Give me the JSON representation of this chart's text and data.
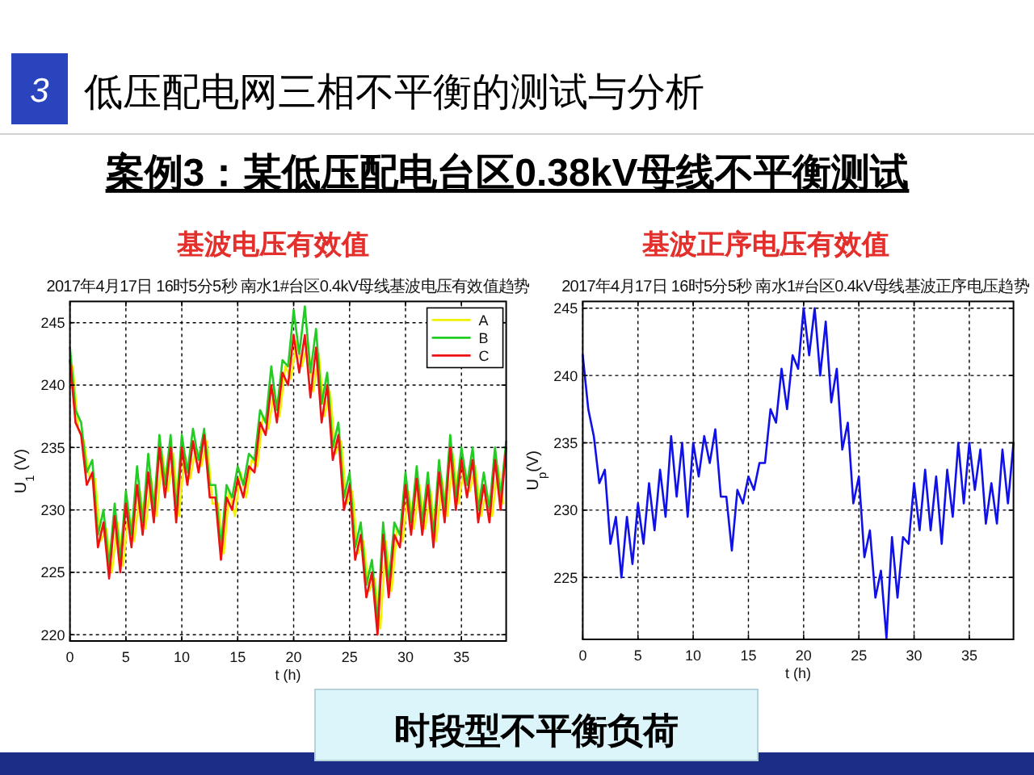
{
  "chart_data": [
    {
      "type": "other",
      "title": "低压配电网三相不平衡的测试与分析",
      "subtitle": "案例3：某低压配电台区0.38kV母线不平衡测试",
      "annotations": [
        "3",
        "时段型不平衡负荷"
      ]
    },
    {
      "type": "line",
      "title": "基波电压有效值",
      "subtitle": "2017年4月17日 16时5分5秒  南水1#台区0.4kV母线基波电压有效值趋势",
      "xlabel": "t (h)",
      "ylabel": "U$_{1}$ (V)",
      "x": [
        0,
        0.5,
        1,
        1.5,
        2,
        2.5,
        3,
        3.5,
        4,
        4.5,
        5,
        5.5,
        6,
        6.5,
        7,
        7.5,
        8,
        8.5,
        9,
        9.5,
        10,
        10.5,
        11,
        11.5,
        12,
        12.5,
        13,
        13.5,
        14,
        14.5,
        15,
        15.5,
        16,
        16.5,
        17,
        17.5,
        18,
        18.5,
        19,
        19.5,
        20,
        20.5,
        21,
        21.5,
        22,
        22.5,
        23,
        23.5,
        24,
        24.5,
        25,
        25.5,
        26,
        26.5,
        27,
        27.5,
        28,
        28.5,
        29,
        29.5,
        30,
        30.5,
        31,
        31.5,
        32,
        32.5,
        33,
        33.5,
        34,
        34.5,
        35,
        35.5,
        36,
        36.5,
        37,
        37.5,
        38,
        38.5,
        39
      ],
      "series": [
        {
          "name": "A",
          "color": "#f2f200",
          "x": [
            0.25,
            0.75,
            1.25,
            1.75,
            2.25,
            2.75,
            3.25,
            3.75,
            4.25,
            4.75,
            5.25,
            5.75,
            6.25,
            6.75,
            7.25,
            7.75,
            8.25,
            8.75,
            9.25,
            9.75,
            10.25,
            10.75,
            11.25,
            11.75,
            12.25,
            12.75,
            13.25,
            13.75,
            14.25,
            14.75,
            15.25,
            15.75,
            16.25,
            16.75,
            17.25,
            17.75,
            18.25,
            18.75,
            19.25,
            19.75,
            20.25,
            20.75,
            21.25,
            21.75,
            22.25,
            22.75,
            23.25,
            23.75,
            24.25,
            24.75,
            25.25,
            25.75,
            26.25,
            26.75,
            27.25,
            27.75,
            28.25,
            28.75,
            29.25,
            29.75,
            30.25,
            30.75,
            31.25,
            31.75,
            32.25,
            32.75,
            33.25,
            33.75,
            34.25,
            34.75,
            35.25,
            35.75,
            36.25,
            36.75,
            37.25,
            37.75,
            38.25,
            38.75
          ],
          "values": [
            241.5,
            236.5,
            235.5,
            232.5,
            232.5,
            227.5,
            228.5,
            225,
            229,
            225.5,
            230,
            227.5,
            231.5,
            228.5,
            232.5,
            229.5,
            234.5,
            231.5,
            234.5,
            229.5,
            234.5,
            232.5,
            235,
            233.5,
            235.5,
            230.5,
            230.5,
            226.5,
            231.5,
            229.5,
            233,
            231,
            234,
            233.5,
            237.5,
            236.5,
            239.5,
            237.5,
            241.5,
            240.5,
            243.5,
            241.5,
            243.5,
            239.5,
            242.5,
            237.5,
            239.5,
            234.5,
            235.5,
            230.5,
            231.5,
            226.5,
            227.5,
            223.5,
            224.5,
            220.5,
            227.5,
            223.5,
            228.5,
            227.5,
            231.5,
            228.5,
            232,
            228.5,
            231.5,
            227.5,
            232.5,
            229.5,
            234.5,
            230.5,
            233.5,
            231.5,
            233.5,
            229.5,
            231.5,
            229.5,
            233.5,
            230.5
          ]
        },
        {
          "name": "B",
          "color": "#22cc22",
          "values": [
            243,
            238,
            237,
            233,
            234,
            228,
            230,
            225.5,
            230.5,
            226,
            231.5,
            228,
            233.5,
            229,
            234.5,
            230,
            236,
            232,
            236,
            230,
            236,
            233,
            236.5,
            234,
            236.5,
            232,
            232,
            227,
            232,
            231,
            233.5,
            232,
            234.5,
            234,
            238,
            237,
            241.5,
            238,
            242,
            241.5,
            246,
            242.5,
            246.3,
            241,
            244.5,
            238.5,
            241,
            235,
            237,
            231,
            233,
            227,
            229,
            224,
            226,
            221,
            229,
            224,
            229,
            228,
            233,
            229,
            233.5,
            229,
            233,
            228,
            234,
            230,
            236,
            231,
            235,
            232,
            235,
            230,
            233,
            230,
            235,
            231,
            235.5
          ]
        },
        {
          "name": "C",
          "color": "#ee1111",
          "values": [
            242,
            237,
            236,
            232,
            233,
            227,
            229,
            224.5,
            229.5,
            225,
            230.5,
            227,
            232,
            228,
            233,
            229,
            235,
            231,
            235,
            229,
            235,
            232,
            235.5,
            233,
            236,
            231,
            231,
            226,
            231,
            230,
            232.5,
            231,
            233.5,
            233,
            237,
            236,
            240,
            237,
            241,
            240,
            244,
            241,
            244,
            239,
            243,
            237,
            240,
            234,
            236,
            230,
            232,
            226,
            228,
            223,
            225,
            220,
            228,
            223,
            228,
            227,
            232,
            228,
            232.5,
            228,
            232,
            227,
            233,
            229,
            235,
            230,
            234,
            231,
            234,
            229,
            232,
            229,
            234,
            230,
            235
          ]
        }
      ],
      "xlim": [
        0,
        39
      ],
      "ylim": [
        219.5,
        246.7
      ],
      "xticks": [
        0,
        5,
        10,
        15,
        20,
        25,
        30,
        35
      ],
      "yticks": [
        220,
        225,
        230,
        235,
        240,
        245
      ],
      "grid": true,
      "legend": "top right",
      "marker": "none",
      "line_style": "solid"
    },
    {
      "type": "line",
      "title": "基波正序电压有效值",
      "subtitle": "2017年4月17日 16时5分5秒  南水1#台区0.4kV母线基波正序电压趋势",
      "xlabel": "t (h)",
      "ylabel": "U$_{p}$(V)",
      "x": [
        0,
        0.5,
        1,
        1.5,
        2,
        2.5,
        3,
        3.5,
        4,
        4.5,
        5,
        5.5,
        6,
        6.5,
        7,
        7.5,
        8,
        8.5,
        9,
        9.5,
        10,
        10.5,
        11,
        11.5,
        12,
        12.5,
        13,
        13.5,
        14,
        14.5,
        15,
        15.5,
        16,
        16.5,
        17,
        17.5,
        18,
        18.5,
        19,
        19.5,
        20,
        20.5,
        21,
        21.5,
        22,
        22.5,
        23,
        23.5,
        24,
        24.5,
        25,
        25.5,
        26,
        26.5,
        27,
        27.5,
        28,
        28.5,
        29,
        29.5,
        30,
        30.5,
        31,
        31.5,
        32,
        32.5,
        33,
        33.5,
        34,
        34.5,
        35,
        35.5,
        36,
        36.5,
        37,
        37.5,
        38,
        38.5,
        39
      ],
      "series": [
        {
          "color": "#1010e8",
          "values": [
            241.5,
            237.5,
            235.5,
            232,
            233,
            227.5,
            229.5,
            225,
            229.5,
            226,
            230.5,
            227.5,
            232,
            228.5,
            233,
            229.5,
            235.5,
            231,
            235,
            229.5,
            235,
            232.5,
            235.5,
            233.5,
            236,
            231,
            231,
            227,
            231.5,
            230.5,
            232.5,
            231.5,
            233.5,
            233.5,
            237.5,
            236.5,
            240.5,
            237.5,
            241.5,
            240.5,
            245,
            241.5,
            245,
            240,
            244,
            238,
            240.5,
            234.5,
            236.5,
            230.5,
            232.5,
            226.5,
            228.5,
            223.5,
            225.5,
            220.5,
            228,
            223.5,
            228,
            227.5,
            232,
            228.5,
            233,
            228.5,
            232.5,
            227.5,
            233,
            229.5,
            235,
            230.5,
            235,
            231.5,
            234.5,
            229,
            232,
            229,
            234.5,
            230.5,
            235
          ]
        }
      ],
      "xlim": [
        0,
        39
      ],
      "ylim": [
        220.4,
        245.5
      ],
      "xticks": [
        0,
        5,
        10,
        15,
        20,
        25,
        30,
        35
      ],
      "yticks": [
        225,
        230,
        235,
        240,
        245
      ],
      "grid": true,
      "marker": "none",
      "line_style": "solid"
    }
  ]
}
